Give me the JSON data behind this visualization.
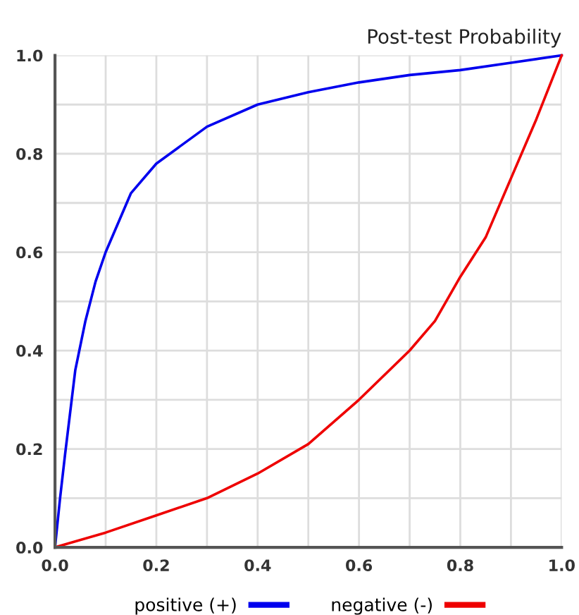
{
  "chart_data": {
    "type": "line",
    "title": "Post-test Probability",
    "xlim": [
      0,
      1
    ],
    "ylim": [
      0,
      1
    ],
    "xticks": [
      {
        "value": 0.0,
        "label": "0.0"
      },
      {
        "value": 0.1,
        "label": null
      },
      {
        "value": 0.2,
        "label": "0.2"
      },
      {
        "value": 0.3,
        "label": null
      },
      {
        "value": 0.4,
        "label": "0.4"
      },
      {
        "value": 0.5,
        "label": null
      },
      {
        "value": 0.6,
        "label": "0.6"
      },
      {
        "value": 0.7,
        "label": null
      },
      {
        "value": 0.8,
        "label": "0.8"
      },
      {
        "value": 0.9,
        "label": null
      },
      {
        "value": 1.0,
        "label": "1.0"
      }
    ],
    "yticks": [
      {
        "value": 0.0,
        "label": "0.0"
      },
      {
        "value": 0.1,
        "label": null
      },
      {
        "value": 0.2,
        "label": "0.2"
      },
      {
        "value": 0.3,
        "label": null
      },
      {
        "value": 0.4,
        "label": "0.4"
      },
      {
        "value": 0.5,
        "label": null
      },
      {
        "value": 0.6,
        "label": "0.6"
      },
      {
        "value": 0.7,
        "label": null
      },
      {
        "value": 0.8,
        "label": "0.8"
      },
      {
        "value": 0.9,
        "label": null
      },
      {
        "value": 1.0,
        "label": "1.0"
      }
    ],
    "grid": true,
    "legend": "bottom",
    "series": [
      {
        "name": "positive (+)",
        "color": "#0000ee",
        "x": [
          0,
          0.01,
          0.02,
          0.04,
          0.06,
          0.08,
          0.1,
          0.15,
          0.2,
          0.3,
          0.4,
          0.5,
          0.6,
          0.7,
          0.8,
          0.9,
          1.0
        ],
        "values": [
          0,
          0.1,
          0.19,
          0.36,
          0.46,
          0.54,
          0.6,
          0.72,
          0.78,
          0.855,
          0.9,
          0.925,
          0.945,
          0.96,
          0.97,
          0.985,
          1.0
        ]
      },
      {
        "name": "negative (-)",
        "color": "#ee0000",
        "x": [
          0,
          0.1,
          0.2,
          0.3,
          0.4,
          0.5,
          0.6,
          0.7,
          0.75,
          0.8,
          0.85,
          0.9,
          0.95,
          1.0
        ],
        "values": [
          0,
          0.03,
          0.065,
          0.1,
          0.15,
          0.21,
          0.3,
          0.4,
          0.46,
          0.55,
          0.63,
          0.75,
          0.87,
          1.0
        ]
      }
    ]
  }
}
